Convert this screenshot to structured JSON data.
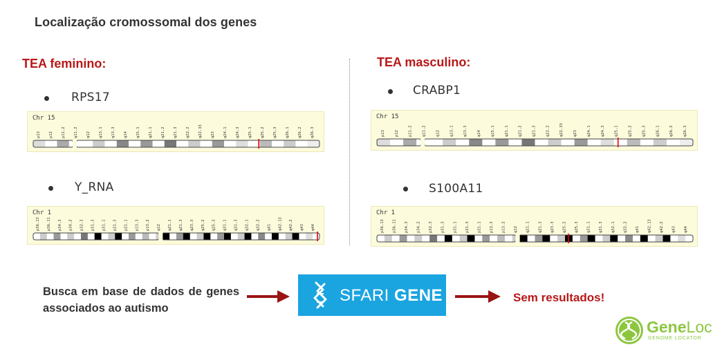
{
  "title": "Localização cromossomal dos genes",
  "left": {
    "heading": "TEA feminino:",
    "genes": [
      "RPS17",
      "Y_RNA"
    ],
    "chromosomes": [
      "Chr 15",
      "Chr 1"
    ]
  },
  "right": {
    "heading": "TEA masculino:",
    "genes": [
      "CRABP1",
      "S100A11"
    ],
    "chromosomes": [
      "Chr 15",
      "Chr 1"
    ]
  },
  "bands": {
    "chr15": [
      "p13",
      "p12",
      "p11.2",
      "q11.2",
      "q12",
      "q13.1",
      "q13.3",
      "q14",
      "q15.1",
      "q21.1",
      "q21.2",
      "q21.3",
      "q22.2",
      "q22.33",
      "q23",
      "q24.1",
      "q24.3",
      "q25.1",
      "q25.2",
      "q25.3",
      "q26.1",
      "q26.2",
      "q26.3"
    ],
    "chr1": [
      "p36.13",
      "p36.11",
      "p34.3",
      "p34.2",
      "p32.3",
      "p31.3",
      "p31.1",
      "p21.3",
      "p21.1",
      "p13.3",
      "p13.2",
      "q12",
      "q21.1",
      "q21.3",
      "q23.3",
      "q25.2",
      "q25.3",
      "q31.1",
      "q31.3",
      "q32.1",
      "q32.2",
      "q41",
      "q42.13",
      "q42.2",
      "q43",
      "q44"
    ]
  },
  "colors": {
    "accent": "#b81818",
    "sfari": "#1aa4e0",
    "geneloc": "#8cc63f",
    "ideogram_bg": "#fcfbdc"
  },
  "search": {
    "text": "Busca em base de dados de genes associados ao autismo",
    "database": {
      "name_light": "SFARI",
      "name_bold": "GENE"
    },
    "result": "Sem resultados!"
  },
  "logo": {
    "name_part1": "Gene",
    "name_part2": "Loc",
    "tagline": "GENOME LOCATOR"
  }
}
